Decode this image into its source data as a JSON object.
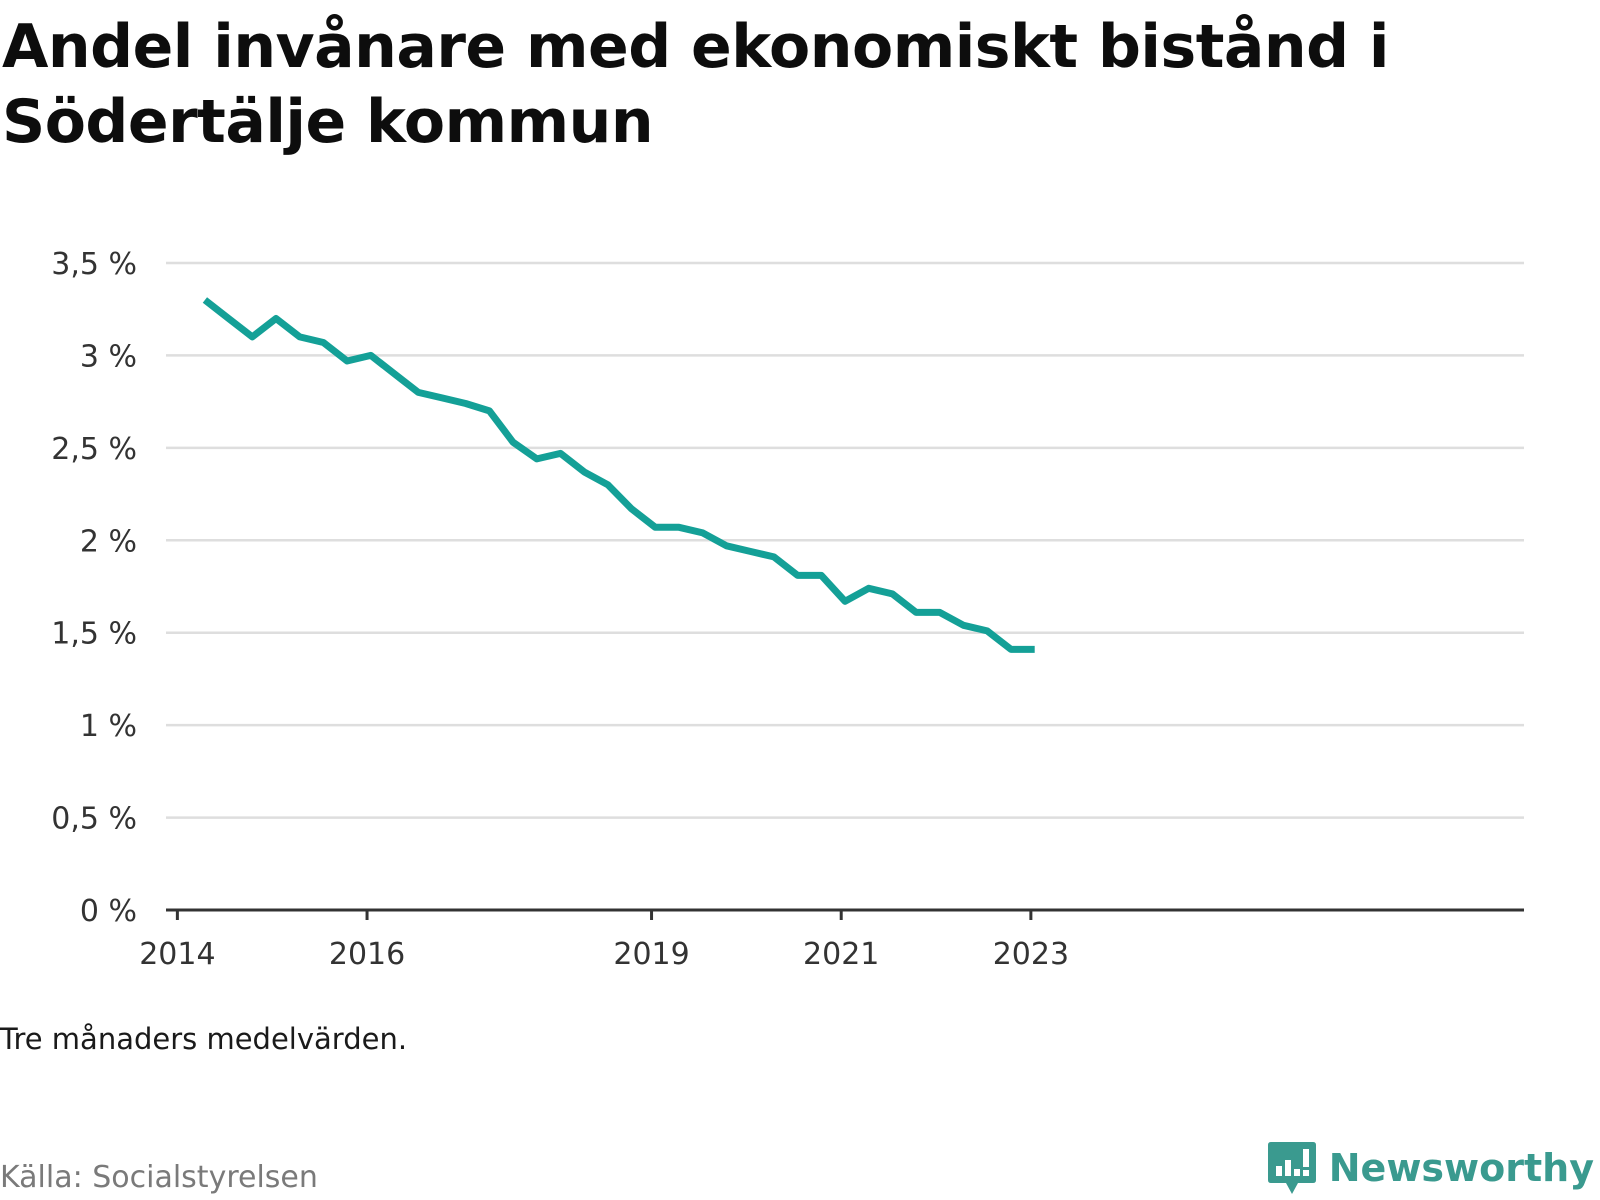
{
  "title": "Andel invånare med ekonomiskt bistånd i Södertälje kommun",
  "note": "Tre månaders medelvärden.",
  "source": "Källa: Socialstyrelsen",
  "brand": {
    "name": "Newsworthy",
    "icon": "newsworthy-logo-icon"
  },
  "colors": {
    "line": "#14a097",
    "grid": "#dedede",
    "axis": "#333333",
    "brand": "#3a9a8f"
  },
  "chart_data": {
    "type": "line",
    "title": "Andel invånare med ekonomiskt bistånd i Södertälje kommun",
    "xlabel": "",
    "ylabel": "",
    "x_ticks": [
      {
        "label": "2014",
        "year": 2014.0
      },
      {
        "label": "2016",
        "year": 2016.0
      },
      {
        "label": "2019",
        "year": 2019.0
      },
      {
        "label": "2021",
        "year": 2021.0
      },
      {
        "label": "2023",
        "year": 2023.0
      }
    ],
    "y_ticks": [
      {
        "label": "0 %",
        "value": 0
      },
      {
        "label": "0,5 %",
        "value": 0.5
      },
      {
        "label": "1 %",
        "value": 1
      },
      {
        "label": "1,5 %",
        "value": 1.5
      },
      {
        "label": "2 %",
        "value": 2
      },
      {
        "label": "2,5 %",
        "value": 2.5
      },
      {
        "label": "3 %",
        "value": 3
      },
      {
        "label": "3,5 %",
        "value": 3.5
      }
    ],
    "xlim": [
      2013.88,
      2028.2
    ],
    "ylim": [
      0,
      3.5
    ],
    "grid": true,
    "series": [
      {
        "x": [
          2014.29,
          2014.54,
          2014.79,
          2015.04,
          2015.29,
          2015.54,
          2015.79,
          2016.04,
          2016.29,
          2016.54,
          2016.79,
          2017.04,
          2017.29,
          2017.54,
          2017.79,
          2018.04,
          2018.29,
          2018.54,
          2018.79,
          2019.04,
          2019.29,
          2019.54,
          2019.79,
          2020.04,
          2020.29,
          2020.54,
          2020.79,
          2021.04,
          2021.29,
          2021.54,
          2021.79,
          2022.04,
          2022.29,
          2022.54,
          2022.79,
          2023.04
        ],
        "values": [
          3.3,
          3.2,
          3.1,
          3.2,
          3.1,
          3.07,
          2.97,
          3.0,
          2.9,
          2.8,
          2.77,
          2.74,
          2.7,
          2.53,
          2.44,
          2.47,
          2.37,
          2.3,
          2.17,
          2.07,
          2.07,
          2.04,
          1.97,
          1.94,
          1.91,
          1.81,
          1.81,
          1.67,
          1.74,
          1.71,
          1.61,
          1.61,
          1.54,
          1.51,
          1.41,
          1.41
        ]
      }
    ]
  }
}
